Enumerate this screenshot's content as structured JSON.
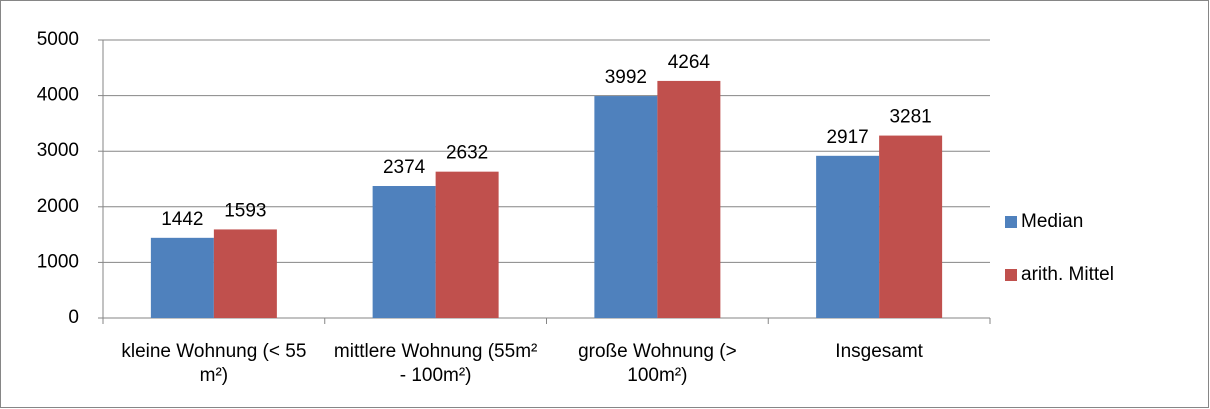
{
  "chart_data": {
    "type": "bar",
    "categories": [
      "kleine Wohnung (< 55 m²)",
      "mittlere Wohnung (55m² - 100m²)",
      "große Wohnung (> 100m²)",
      "Insgesamt"
    ],
    "series": [
      {
        "name": "Median",
        "color": "#4f81bd",
        "values": [
          1442,
          2374,
          3992,
          2917
        ]
      },
      {
        "name": "arith. Mittel",
        "color": "#c0504d",
        "values": [
          1593,
          2632,
          4264,
          3281
        ]
      }
    ],
    "ylim": [
      0,
      5000
    ],
    "yticks": [
      0,
      1000,
      2000,
      3000,
      4000,
      5000
    ],
    "grid": true,
    "legend": "right"
  }
}
